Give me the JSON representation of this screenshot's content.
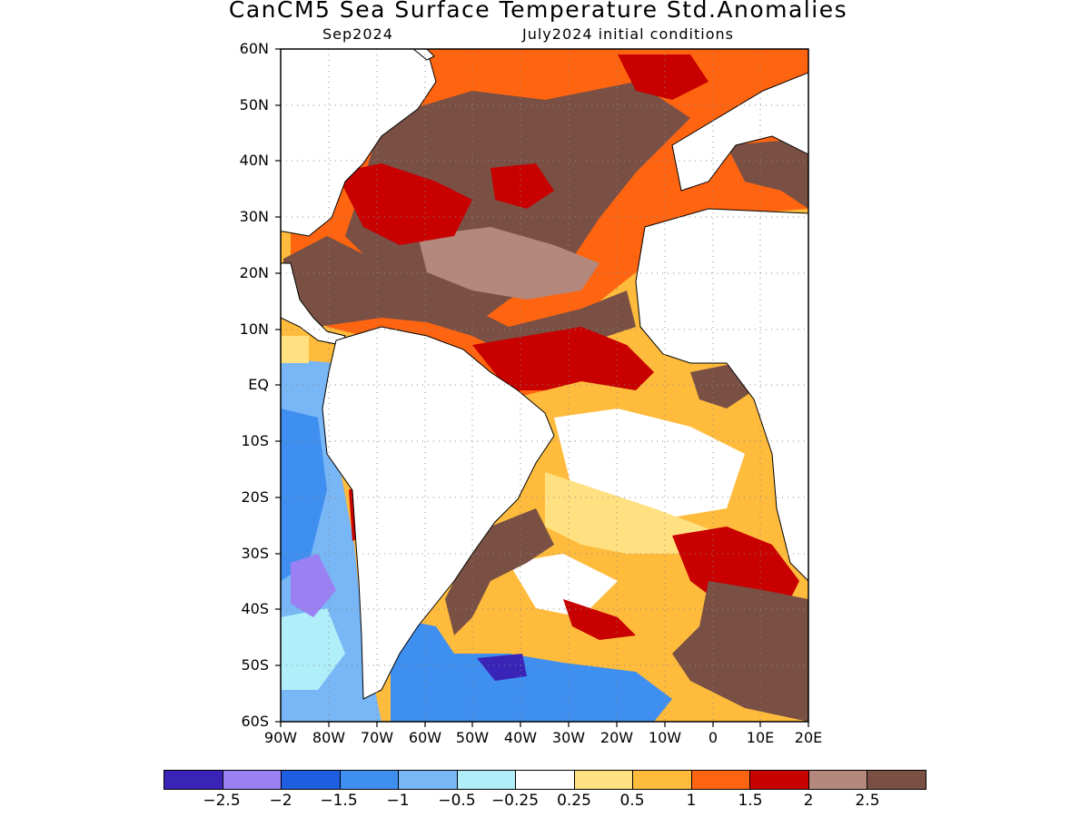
{
  "title": "CanCM5 Sea Surface Temperature Std.Anomalies",
  "subtitle_left": "Sep2024",
  "subtitle_right": "July2024 initial conditions",
  "lat_labels": [
    "60N",
    "50N",
    "40N",
    "30N",
    "20N",
    "10N",
    "EQ",
    "10S",
    "20S",
    "30S",
    "40S",
    "50S",
    "60S"
  ],
  "lon_labels": [
    "90W",
    "80W",
    "70W",
    "60W",
    "50W",
    "40W",
    "30W",
    "20W",
    "10W",
    "0",
    "10E",
    "20E"
  ],
  "colorbar": {
    "colors": [
      "#3a24b8",
      "#9a80f2",
      "#1d5fe0",
      "#3f8ff0",
      "#78b6f5",
      "#b0eefa",
      "#ffffff",
      "#ffe181",
      "#ffbb3c",
      "#ff6410",
      "#c80000",
      "#b4887c",
      "#7a5044"
    ],
    "labels": [
      "−2.5",
      "−2",
      "−1.5",
      "−1",
      "−0.5",
      "−0.25",
      "0.25",
      "0.5",
      "1",
      "1.5",
      "2",
      "2.5"
    ]
  },
  "map_data": {
    "domain": {
      "lon": [
        -90,
        20
      ],
      "lat": [
        -60,
        60
      ]
    },
    "grid_spacing_deg": 10,
    "variable": "SST standardized anomaly",
    "field_values": {
      "north_atlantic_subtropical": 2.5,
      "north_atlantic_gulfstream": 2,
      "tropical_atlantic": 1.5,
      "south_atlantic_central": 0.5,
      "south_atlantic_southeast": 2.5,
      "southeast_pacific": -1,
      "southwest_atlantic_shelf": -1.5
    }
  }
}
